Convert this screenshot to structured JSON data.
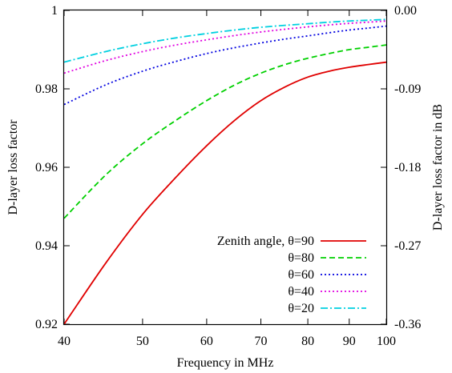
{
  "chart_data": {
    "type": "line",
    "title": "",
    "xlabel": "Frequency in MHz",
    "ylabel": "D-layer loss factor",
    "y2label": "D-layer loss factor in dB",
    "x_scale": "log",
    "xlim": [
      40,
      100
    ],
    "ylim": [
      0.92,
      1.0
    ],
    "y2lim": [
      -0.36,
      0.0
    ],
    "x_ticks": [
      40,
      50,
      60,
      70,
      80,
      90,
      100
    ],
    "x_tick_labels": [
      "40",
      "50",
      "60",
      "70",
      "80",
      "90",
      "100"
    ],
    "y_ticks": [
      0.92,
      0.94,
      0.96,
      0.98,
      1.0
    ],
    "y_tick_labels": [
      "0.92",
      "0.94",
      "0.96",
      "0.98",
      "1"
    ],
    "y2_ticks": [
      -0.36,
      -0.27,
      -0.18,
      -0.09,
      0.0
    ],
    "y2_tick_labels": [
      "-0.36",
      "-0.27",
      "-0.18",
      "-0.09",
      "0.00"
    ],
    "grid": false,
    "legend_position": "bottom-right",
    "x": [
      40,
      45,
      50,
      55,
      60,
      65,
      70,
      75,
      80,
      85,
      90,
      95,
      100
    ],
    "series": [
      {
        "name": "Zenith angle, θ=90",
        "color": "#e00000",
        "dash": "solid",
        "values": [
          0.92,
          0.9355,
          0.948,
          0.9575,
          0.9655,
          0.972,
          0.977,
          0.9805,
          0.983,
          0.9845,
          0.9855,
          0.9862,
          0.9868
        ]
      },
      {
        "name": "θ=80",
        "color": "#00d000",
        "dash": "dashed",
        "values": [
          0.947,
          0.958,
          0.966,
          0.972,
          0.977,
          0.981,
          0.984,
          0.9862,
          0.9878,
          0.989,
          0.99,
          0.9906,
          0.9912
        ]
      },
      {
        "name": "θ=60",
        "color": "#0000e0",
        "dash": "dotted",
        "values": [
          0.976,
          0.981,
          0.9845,
          0.987,
          0.989,
          0.9905,
          0.9917,
          0.9927,
          0.9935,
          0.9943,
          0.995,
          0.9955,
          0.996
        ]
      },
      {
        "name": "θ=40",
        "color": "#e000e0",
        "dash": "dotted",
        "values": [
          0.984,
          0.9872,
          0.9895,
          0.9912,
          0.9925,
          0.9936,
          0.9945,
          0.9952,
          0.9958,
          0.9963,
          0.9967,
          0.997,
          0.9973
        ]
      },
      {
        "name": "θ=20",
        "color": "#00d0e0",
        "dash": "dashdot",
        "values": [
          0.9868,
          0.9895,
          0.9915,
          0.993,
          0.9941,
          0.995,
          0.9957,
          0.9962,
          0.9966,
          0.997,
          0.9973,
          0.9975,
          0.9977
        ]
      }
    ]
  }
}
